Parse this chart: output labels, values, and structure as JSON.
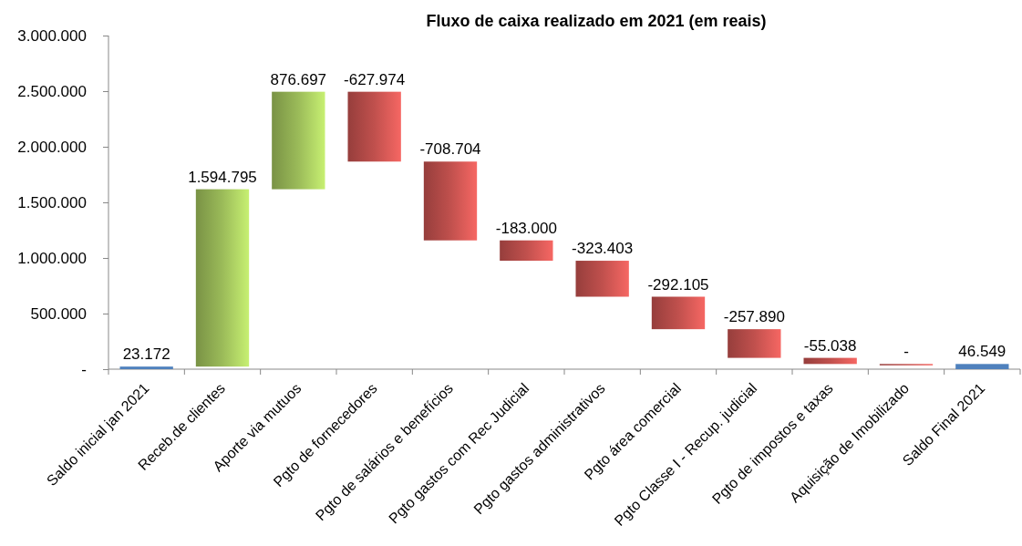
{
  "chart_data": {
    "type": "bar",
    "title": "Fluxo de caixa realizado em 2021 (em reais)",
    "categories": [
      "Saldo inicial jan 2021",
      "Receb.de clientes",
      "Aporte via mutuos",
      "Pgto de fornecedores",
      "Pgto de salários e benefícios",
      "Pgto gastos com Rec Judicial",
      "Pgto gastos administrativos",
      "Pgto área comercial",
      "Pgto Classe I - Recup. judicial",
      "Pgto de impostos e taxas",
      "Aquisição de Imobilizado",
      "Saldo Final 2021"
    ],
    "values": [
      23172,
      1594795,
      876697,
      -627974,
      -708704,
      -183000,
      -323403,
      -292105,
      -257890,
      -55038,
      0,
      46549
    ],
    "base": [
      0,
      23172,
      1617967,
      2494664,
      1866690,
      1157986,
      974986,
      651583,
      359478,
      101588,
      46550,
      0
    ],
    "colors": [
      "#4f81bd",
      "#9bbb59",
      "#9bbb59",
      "#c0504d",
      "#c0504d",
      "#c0504d",
      "#c0504d",
      "#c0504d",
      "#c0504d",
      "#c0504d",
      "#c0504d",
      "#4f81bd"
    ],
    "value_labels": [
      "23.172",
      "1.594.795",
      "876.697",
      "-627.974",
      "-708.704",
      "-183.000",
      "-323.403",
      "-292.105",
      "-257.890",
      "-55.038",
      "-",
      "46.549"
    ],
    "ylim": [
      0,
      3000000
    ],
    "yticks": [
      {
        "value": 0,
        "label": "-"
      },
      {
        "value": 500000,
        "label": "500.000"
      },
      {
        "value": 1000000,
        "label": "1.000.000"
      },
      {
        "value": 1500000,
        "label": "1.500.000"
      },
      {
        "value": 2000000,
        "label": "2.000.000"
      },
      {
        "value": 2500000,
        "label": "2.500.000"
      },
      {
        "value": 3000000,
        "label": "3.000.000"
      }
    ]
  }
}
